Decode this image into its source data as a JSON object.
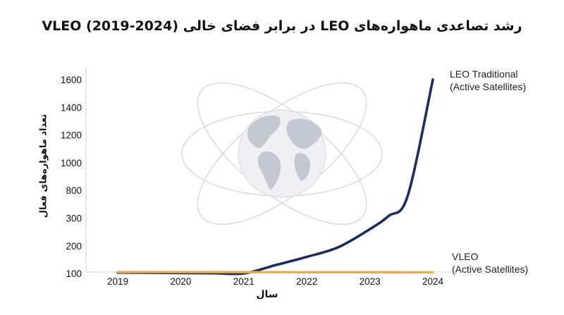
{
  "chart_data": {
    "type": "line",
    "title": "رشد تصاعدی ماهواره‌های LEO در برابر فضای خالی VLEO (2019-2024)",
    "xlabel": "سال",
    "ylabel": "تعداد ماهواره‌های فعال",
    "categories": [
      "2019",
      "2020",
      "2021",
      "2022",
      "2023",
      "2024"
    ],
    "y_ticks": [
      "100",
      "200",
      "300",
      "800",
      "1000",
      "1200",
      "1400",
      "1600"
    ],
    "series": [
      {
        "name_line1": "LEO Traditional",
        "name_line2": "(Active Satellites)",
        "color": "#1e2d5a",
        "x": [
          2019,
          2019.5,
          2020,
          2020.5,
          2021,
          2021.5,
          2022,
          2022.5,
          2023,
          2023.3,
          2023.6,
          2024
        ],
        "y": [
          40,
          52,
          66,
          80,
          95,
          130,
          160,
          195,
          260,
          340,
          700,
          1600
        ]
      },
      {
        "name_line1": "VLEO",
        "name_line2": "(Active Satellites)",
        "color": "#e0ad5a",
        "x": [
          2019,
          2020,
          2021,
          2022,
          2023,
          2024
        ],
        "y": [
          5,
          7,
          9,
          12,
          16,
          20
        ]
      }
    ],
    "grid": false,
    "background_icon": "globe-with-orbits-icon"
  }
}
